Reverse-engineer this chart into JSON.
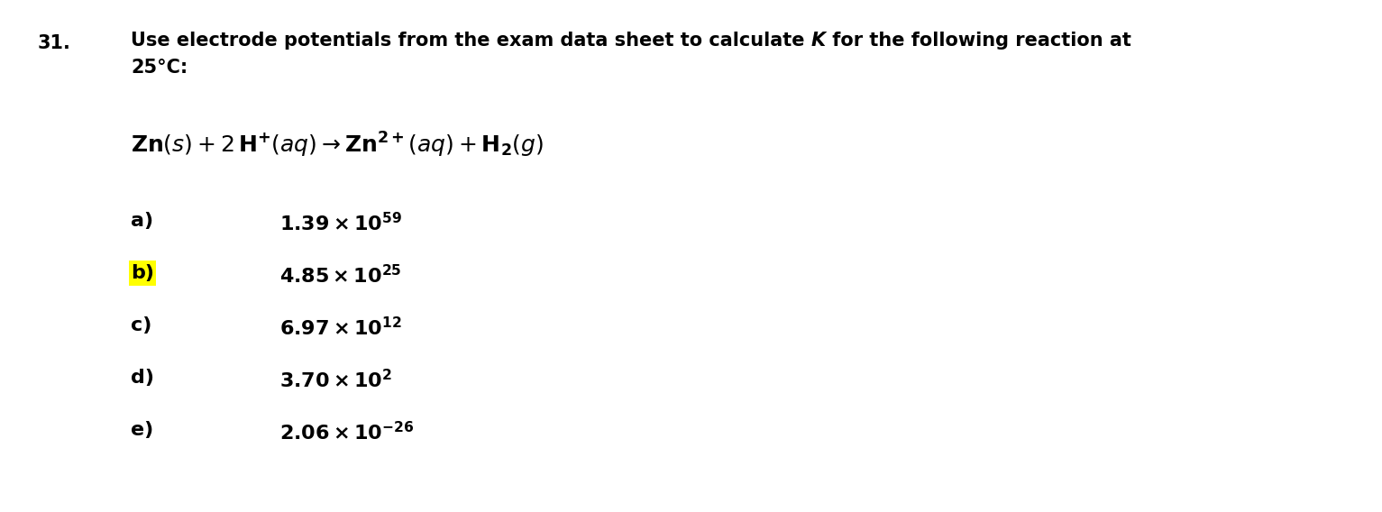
{
  "background_color": "#ffffff",
  "text_color": "#000000",
  "highlight_color": "#ffff00",
  "question_number": "31.",
  "q_line1_part1": "Use electrode potentials from the exam data sheet to calculate ",
  "q_line1_K": "K",
  "q_line1_part2": " for the following reaction at",
  "q_line2": "25°C:",
  "options": [
    {
      "label": "a)",
      "mantissa": "1.39 × 10",
      "exp": "59",
      "exp_sign": "",
      "highlight": false
    },
    {
      "label": "b)",
      "mantissa": "4.85 × 10",
      "exp": "25",
      "exp_sign": "",
      "highlight": true
    },
    {
      "label": "c)",
      "mantissa": "6.97 × 10",
      "exp": "12",
      "exp_sign": "",
      "highlight": false
    },
    {
      "label": "d)",
      "mantissa": "3.70 × 10",
      "exp": "2",
      "exp_sign": "",
      "highlight": false
    },
    {
      "label": "e)",
      "mantissa": "2.06 × 10",
      "exp": "26",
      "exp_sign": "-",
      "highlight": false
    }
  ],
  "fig_width": 15.33,
  "fig_height": 5.68,
  "dpi": 100
}
